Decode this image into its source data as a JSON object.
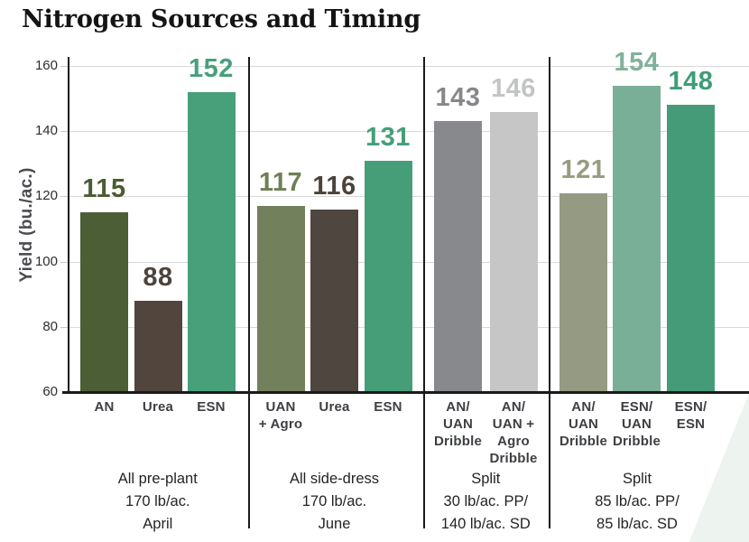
{
  "title": "Nitrogen Sources and Timing",
  "ylabel": "Yield (bu./ac.)",
  "colors": {
    "background": "#ffffff",
    "gridline": "#d9d9d9",
    "axis": "#1a1a1a",
    "title_text": "#141414",
    "ylabel_text": "#4c4c50",
    "ytick_text": "#2e2e2e",
    "bar_label_text": "#3d3f42",
    "footer_text": "#242424",
    "corner_wedge": "#edf3ee"
  },
  "chart_data": {
    "type": "bar",
    "title": "Nitrogen Sources and Timing",
    "xlabel": "",
    "ylabel": "Yield (bu./ac.)",
    "ylim": [
      60,
      160
    ],
    "yticks": [
      60,
      80,
      100,
      120,
      140,
      160
    ],
    "grid": true,
    "legend": "none",
    "groups": [
      {
        "footer": "All pre-plant\n170 lb/ac.\nApril",
        "bars": [
          {
            "label": "AN",
            "value": 115,
            "color": "#4c5e35",
            "label_color": "#4a5c32"
          },
          {
            "label": "Urea",
            "value": 88,
            "color": "#51453d",
            "label_color": "#4f443c"
          },
          {
            "label": "ESN",
            "value": 152,
            "color": "#48a07b",
            "label_color": "#48a07b"
          }
        ]
      },
      {
        "footer": "All side-dress\n170 lb/ac.\nJune",
        "bars": [
          {
            "label": "UAN\n+ Agro",
            "value": 117,
            "color": "#72805b",
            "label_color": "#6f7f55"
          },
          {
            "label": "Urea",
            "value": 116,
            "color": "#4f463f",
            "label_color": "#4c423b"
          },
          {
            "label": "ESN",
            "value": 131,
            "color": "#469e79",
            "label_color": "#469e79"
          }
        ]
      },
      {
        "footer": "Split\n30 lb/ac. PP/\n140 lb/ac. SD",
        "bars": [
          {
            "label": "AN/\nUAN\nDribble",
            "value": 143,
            "color": "#87898c",
            "label_color": "#85878a"
          },
          {
            "label": "AN/\nUAN +\nAgro\nDribble",
            "value": 146,
            "color": "#c5c6c5",
            "label_color": "#c3c4c4"
          }
        ]
      },
      {
        "footer": "Split\n85 lb/ac. PP/\n85 lb/ac. SD",
        "bars": [
          {
            "label": "AN/\nUAN\nDribble",
            "value": 121,
            "color": "#959b82",
            "label_color": "#979d80"
          },
          {
            "label": "ESN/\nUAN\nDribble",
            "value": 154,
            "color": "#79af97",
            "label_color": "#80b29a"
          },
          {
            "label": "ESN/\nESN",
            "value": 148,
            "color": "#459b77",
            "label_color": "#3f9d76"
          }
        ]
      }
    ]
  }
}
